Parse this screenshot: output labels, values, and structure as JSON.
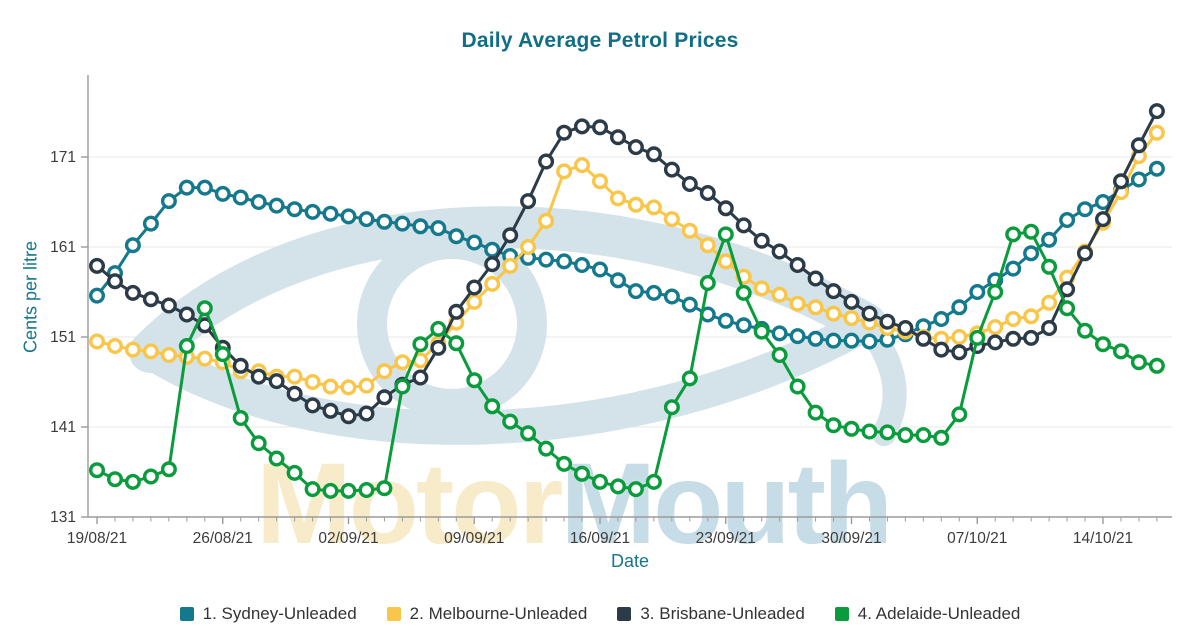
{
  "title": "Daily Average Petrol Prices",
  "watermark": {
    "text_part1": "Motor",
    "text_part2": "Mouth",
    "color_part1": "#f8ebc9",
    "color_part2": "#c6dce6",
    "eye_color": "#d3e3e9"
  },
  "chart_data": {
    "type": "line",
    "title": "Daily Average Petrol Prices",
    "xlabel": "Date",
    "ylabel": "Cents per litre",
    "ylim": [
      131,
      180
    ],
    "yticks": [
      131,
      141,
      151,
      161,
      171
    ],
    "grid": "horizontal",
    "legend_position": "bottom",
    "marker": "open-circle",
    "background": "#ffffff",
    "axis_color": "#9b9b9b",
    "gridline_color": "#e7e7e7",
    "tick_label_color": "#3c3c3c",
    "n_days": 60,
    "start_date": "19/08/21",
    "end_date": "17/10/21",
    "x_tick_positions": [
      0,
      7,
      14,
      21,
      28,
      35,
      42,
      49,
      56
    ],
    "x_tick_labels": [
      "19/08/21",
      "26/08/21",
      "02/09/21",
      "09/09/21",
      "16/09/21",
      "23/09/21",
      "30/09/21",
      "07/10/21",
      "14/10/21"
    ],
    "series": [
      {
        "name": "1. Sydney-Unleaded",
        "color": "#15798d",
        "values": [
          155.6,
          158.1,
          161.2,
          163.6,
          166.1,
          167.6,
          167.6,
          166.9,
          166.5,
          166.0,
          165.6,
          165.2,
          164.9,
          164.7,
          164.4,
          164.1,
          163.8,
          163.6,
          163.3,
          163.1,
          162.2,
          161.5,
          160.7,
          160.0,
          159.8,
          159.6,
          159.4,
          159.0,
          158.5,
          157.3,
          156.1,
          155.9,
          155.5,
          154.6,
          153.5,
          152.8,
          152.3,
          151.9,
          151.4,
          151.1,
          150.8,
          150.6,
          150.6,
          150.5,
          150.7,
          151.3,
          152.2,
          153.0,
          154.3,
          156.0,
          157.3,
          158.6,
          160.3,
          161.8,
          164.0,
          165.2,
          166.0,
          167.3,
          168.5,
          169.7
        ]
      },
      {
        "name": "2. Melbourne-Unleaded",
        "color": "#f9c64a",
        "values": [
          150.5,
          150.0,
          149.6,
          149.4,
          149.0,
          148.8,
          148.6,
          148.2,
          147.2,
          147.2,
          146.6,
          146.6,
          146.0,
          145.5,
          145.4,
          145.6,
          147.2,
          148.2,
          148.4,
          150.3,
          152.6,
          154.9,
          156.9,
          158.9,
          161.0,
          163.9,
          169.4,
          170.1,
          168.3,
          166.4,
          165.7,
          165.4,
          164.1,
          162.8,
          161.2,
          159.4,
          157.7,
          156.4,
          155.7,
          154.7,
          154.3,
          153.6,
          153.1,
          152.6,
          152.0,
          151.6,
          151.0,
          150.8,
          151.0,
          151.4,
          152.1,
          153.0,
          153.3,
          154.8,
          157.6,
          160.5,
          163.7,
          167.1,
          171.1,
          173.7
        ]
      },
      {
        "name": "3. Brisbane-Unleaded",
        "color": "#2c3b48",
        "values": [
          158.9,
          157.2,
          155.9,
          155.2,
          154.5,
          153.5,
          152.3,
          149.8,
          147.8,
          146.6,
          146.1,
          144.7,
          143.4,
          142.8,
          142.2,
          142.5,
          144.3,
          145.7,
          146.5,
          149.8,
          153.8,
          156.5,
          159.1,
          162.3,
          166.1,
          170.5,
          173.7,
          174.4,
          174.3,
          173.2,
          172.1,
          171.3,
          169.6,
          168.0,
          167.0,
          165.3,
          163.4,
          161.7,
          160.5,
          159.0,
          157.5,
          156.1,
          154.9,
          153.6,
          152.7,
          152.0,
          150.8,
          149.6,
          149.3,
          150.0,
          150.4,
          150.8,
          150.9,
          152.0,
          156.3,
          160.3,
          164.1,
          168.3,
          172.3,
          176.1
        ]
      },
      {
        "name": "4. Adelaide-Unleaded",
        "color": "#0a9b3c",
        "values": [
          136.2,
          135.2,
          134.9,
          135.5,
          136.3,
          150.0,
          154.2,
          149.1,
          142.0,
          139.2,
          137.5,
          135.9,
          134.1,
          133.9,
          133.9,
          134.0,
          134.2,
          145.5,
          150.2,
          151.9,
          150.3,
          146.2,
          143.3,
          141.6,
          140.3,
          138.6,
          136.9,
          135.8,
          134.9,
          134.4,
          134.1,
          134.9,
          143.2,
          146.4,
          157.0,
          162.4,
          155.9,
          151.6,
          149.0,
          145.5,
          142.6,
          141.2,
          140.8,
          140.5,
          140.4,
          140.1,
          140.1,
          139.8,
          142.4,
          150.9,
          156.0,
          162.4,
          162.7,
          158.8,
          154.2,
          151.7,
          150.2,
          149.4,
          148.2,
          147.8
        ]
      }
    ]
  }
}
